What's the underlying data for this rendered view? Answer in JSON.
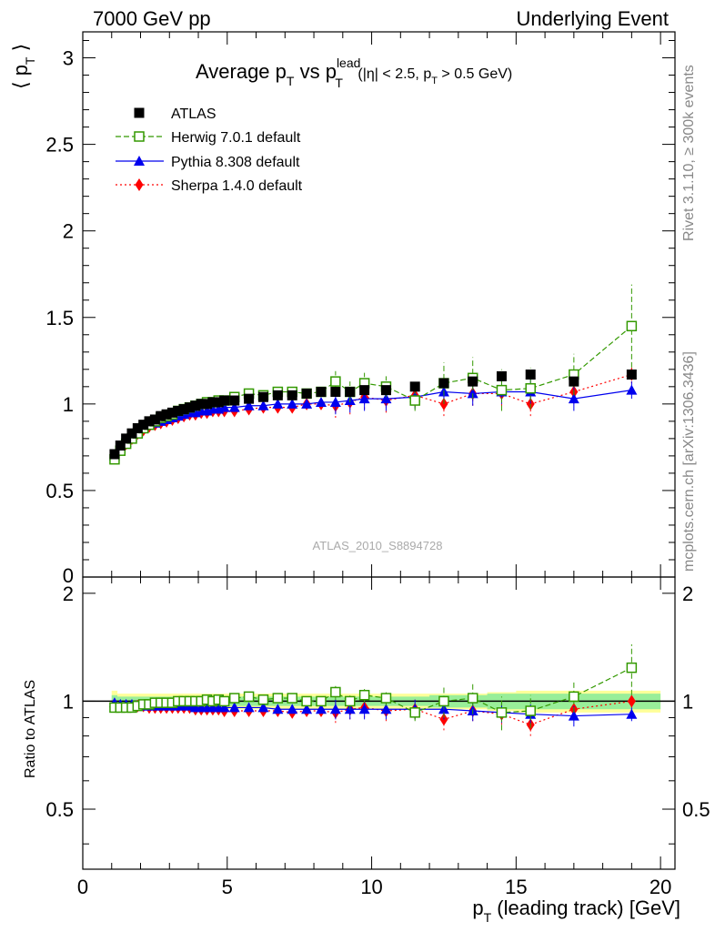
{
  "header": {
    "left": "7000 GeV pp",
    "right": "Underlying Event"
  },
  "title": {
    "main": "Average p",
    "sub_t1": "T",
    "vs": " vs p",
    "sup": "lead",
    "sub_t2": "T",
    "cut_a": " (|η| < 2.5, p",
    "cut_sub": "T",
    "cut_b": " > 0.5 GeV)"
  },
  "side": {
    "rivet": "Rivet 3.1.10, ≥ 300k events",
    "mcplots": "mcplots.cern.ch [arXiv:1306.3436]"
  },
  "watermark": "ATLAS_2010_S8894728",
  "axes": {
    "ylabel_main_a": "⟨ p",
    "ylabel_main_sub": "T",
    "ylabel_main_b": " ⟩",
    "ylabel_ratio": "Ratio to ATLAS",
    "xlabel_a": "p",
    "xlabel_sub": "T",
    "xlabel_b": " (leading track) [GeV]"
  },
  "colors": {
    "atlas": "#000000",
    "herwig": "#339900",
    "pythia": "#0000ee",
    "sherpa": "#ff0000",
    "band_outer": "#ffff99",
    "band_inner": "#99ee99"
  },
  "chart_data": [
    {
      "type": "scatter",
      "title": "Average pT vs pT lead (|η| < 2.5, pT > 0.5 GeV)",
      "xlabel": "pT (leading track) [GeV]",
      "ylabel": "⟨ pT ⟩",
      "xlim": [
        0,
        20.5
      ],
      "ylim": [
        0,
        3.15
      ],
      "xticks": [
        0,
        5,
        10,
        15,
        20
      ],
      "yticks": [
        0.5,
        1,
        1.5,
        2,
        2.5,
        3
      ],
      "ytick_labels": [
        "0.5",
        "1",
        "1.5",
        "2",
        "2.5",
        "3"
      ],
      "bottom_tick_label": "0",
      "legend_position": "top-left",
      "x": [
        1.1,
        1.3,
        1.5,
        1.7,
        1.9,
        2.1,
        2.3,
        2.5,
        2.7,
        2.9,
        3.1,
        3.3,
        3.5,
        3.7,
        3.9,
        4.1,
        4.3,
        4.5,
        4.7,
        4.9,
        5.25,
        5.75,
        6.25,
        6.75,
        7.25,
        7.75,
        8.25,
        8.75,
        9.25,
        9.75,
        10.5,
        11.5,
        12.5,
        13.5,
        14.5,
        15.5,
        17.0,
        19.0
      ],
      "series": [
        {
          "name": "ATLAS",
          "marker": "square",
          "values": [
            0.71,
            0.76,
            0.8,
            0.83,
            0.86,
            0.88,
            0.9,
            0.91,
            0.93,
            0.94,
            0.95,
            0.96,
            0.97,
            0.98,
            0.99,
            1.0,
            1.0,
            1.01,
            1.01,
            1.02,
            1.02,
            1.03,
            1.04,
            1.05,
            1.05,
            1.06,
            1.07,
            1.07,
            1.07,
            1.08,
            1.08,
            1.1,
            1.12,
            1.13,
            1.16,
            1.17,
            1.13,
            1.17
          ]
        },
        {
          "name": "Herwig 7.0.1 default",
          "marker": "open-square",
          "line": "dashed",
          "values": [
            0.68,
            0.73,
            0.77,
            0.8,
            0.83,
            0.86,
            0.88,
            0.9,
            0.92,
            0.93,
            0.94,
            0.96,
            0.97,
            0.98,
            0.99,
            1.0,
            1.01,
            1.01,
            1.02,
            1.02,
            1.04,
            1.06,
            1.05,
            1.07,
            1.07,
            1.06,
            1.07,
            1.13,
            1.07,
            1.12,
            1.1,
            1.02,
            1.12,
            1.15,
            1.08,
            1.09,
            1.17,
            1.45
          ]
        },
        {
          "name": "Pythia 8.308 default",
          "marker": "triangle",
          "line": "solid",
          "values": [
            0.7,
            0.75,
            0.78,
            0.81,
            0.84,
            0.86,
            0.88,
            0.89,
            0.9,
            0.91,
            0.92,
            0.93,
            0.94,
            0.95,
            0.95,
            0.96,
            0.96,
            0.97,
            0.97,
            0.98,
            0.98,
            0.99,
            0.99,
            1.0,
            1.0,
            1.0,
            1.01,
            1.01,
            1.02,
            1.03,
            1.03,
            1.04,
            1.07,
            1.06,
            1.07,
            1.07,
            1.03,
            1.08
          ]
        },
        {
          "name": "Sherpa 1.4.0 default",
          "marker": "diamond",
          "line": "dotted",
          "values": [
            0.7,
            0.74,
            0.77,
            0.8,
            0.83,
            0.85,
            0.87,
            0.88,
            0.89,
            0.9,
            0.91,
            0.92,
            0.93,
            0.94,
            0.94,
            0.95,
            0.95,
            0.96,
            0.96,
            0.96,
            0.96,
            0.97,
            0.98,
            0.98,
            0.98,
            1.0,
            1.0,
            0.99,
            1.01,
            1.04,
            1.02,
            1.05,
            1.0,
            1.06,
            1.06,
            1.0,
            1.07,
            1.17
          ]
        }
      ]
    },
    {
      "type": "scatter",
      "title": "Ratio to ATLAS",
      "ylabel": "Ratio to ATLAS",
      "xlim": [
        0,
        20.5
      ],
      "ylim": [
        0.34,
        2.22
      ],
      "yticks": [
        0.5,
        1,
        2
      ],
      "ytick_labels": [
        "0.5",
        "1",
        "2"
      ],
      "x": [
        1.1,
        1.3,
        1.5,
        1.7,
        1.9,
        2.1,
        2.3,
        2.5,
        2.7,
        2.9,
        3.1,
        3.3,
        3.5,
        3.7,
        3.9,
        4.1,
        4.3,
        4.5,
        4.7,
        4.9,
        5.25,
        5.75,
        6.25,
        6.75,
        7.25,
        7.75,
        8.25,
        8.75,
        9.25,
        9.75,
        10.5,
        11.5,
        12.5,
        13.5,
        14.5,
        15.5,
        17.0,
        19.0
      ],
      "band_inner": [
        0.04,
        0.03,
        0.03,
        0.03,
        0.03,
        0.03,
        0.03,
        0.03,
        0.03,
        0.03,
        0.03,
        0.03,
        0.03,
        0.03,
        0.03,
        0.03,
        0.03,
        0.03,
        0.03,
        0.03,
        0.03,
        0.03,
        0.03,
        0.03,
        0.03,
        0.03,
        0.03,
        0.03,
        0.03,
        0.03,
        0.03,
        0.03,
        0.04,
        0.04,
        0.05,
        0.05,
        0.05,
        0.05
      ],
      "band_outer": [
        0.07,
        0.05,
        0.05,
        0.05,
        0.05,
        0.05,
        0.05,
        0.05,
        0.05,
        0.05,
        0.05,
        0.05,
        0.05,
        0.05,
        0.05,
        0.05,
        0.05,
        0.05,
        0.05,
        0.05,
        0.05,
        0.05,
        0.05,
        0.05,
        0.05,
        0.05,
        0.05,
        0.05,
        0.05,
        0.05,
        0.05,
        0.05,
        0.05,
        0.05,
        0.06,
        0.07,
        0.07,
        0.07
      ],
      "series": [
        {
          "name": "Herwig 7.0.1 default",
          "values": [
            0.96,
            0.96,
            0.96,
            0.96,
            0.97,
            0.98,
            0.98,
            0.99,
            0.99,
            0.99,
            0.99,
            1.0,
            1.0,
            1.0,
            1.0,
            1.0,
            1.01,
            1.0,
            1.01,
            1.0,
            1.02,
            1.03,
            1.01,
            1.02,
            1.02,
            1.0,
            1.0,
            1.06,
            1.0,
            1.04,
            1.02,
            0.93,
            1.0,
            1.02,
            0.93,
            0.94,
            1.03,
            1.24
          ]
        },
        {
          "name": "Pythia 8.308 default",
          "values": [
            0.99,
            0.98,
            0.98,
            0.98,
            0.97,
            0.97,
            0.97,
            0.97,
            0.97,
            0.97,
            0.97,
            0.97,
            0.97,
            0.97,
            0.96,
            0.96,
            0.96,
            0.96,
            0.96,
            0.96,
            0.96,
            0.96,
            0.96,
            0.95,
            0.95,
            0.95,
            0.95,
            0.95,
            0.95,
            0.95,
            0.95,
            0.95,
            0.95,
            0.94,
            0.93,
            0.92,
            0.91,
            0.92
          ]
        },
        {
          "name": "Sherpa 1.4.0 default",
          "values": [
            0.98,
            0.97,
            0.97,
            0.97,
            0.97,
            0.97,
            0.96,
            0.96,
            0.96,
            0.96,
            0.96,
            0.96,
            0.96,
            0.96,
            0.95,
            0.95,
            0.95,
            0.95,
            0.95,
            0.94,
            0.94,
            0.94,
            0.94,
            0.94,
            0.93,
            0.94,
            0.94,
            0.93,
            0.95,
            0.96,
            0.94,
            0.95,
            0.89,
            0.94,
            0.92,
            0.86,
            0.95,
            1.0
          ]
        }
      ]
    }
  ]
}
